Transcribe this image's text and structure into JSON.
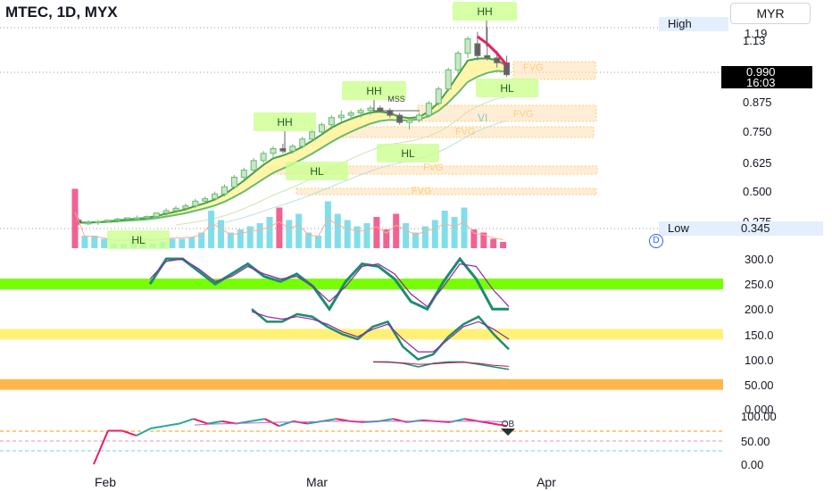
{
  "header": {
    "symbol": "MTEC",
    "interval": "1D",
    "exchange": "MYX",
    "title": "MTEC, 1D, MYX"
  },
  "currency_button": "MYR",
  "price_labels": {
    "high_label": "High",
    "high_value": "1.19",
    "low_label": "Low",
    "low_value": "0.345",
    "last_price": "0.990",
    "countdown": "16:03"
  },
  "dividend_marker": "D",
  "colors": {
    "up": "#26a69a",
    "down": "#ef5350",
    "accent_red": "#e91e63",
    "bg": "#ffffff"
  },
  "chart_data": [
    {
      "type": "candlestick",
      "x_axis": {
        "labels": [
          "Feb",
          "Mar",
          "Apr"
        ]
      },
      "y_axis": {
        "ticks": [
          "1.13",
          "0.875",
          "0.750",
          "0.625",
          "0.500",
          "0.375"
        ],
        "range": [
          0.33,
          1.22
        ]
      },
      "ohlc": [
        [
          0.38,
          0.39,
          0.36,
          0.37
        ],
        [
          0.37,
          0.38,
          0.36,
          0.37
        ],
        [
          0.37,
          0.38,
          0.36,
          0.375
        ],
        [
          0.375,
          0.38,
          0.37,
          0.38
        ],
        [
          0.38,
          0.39,
          0.37,
          0.385
        ],
        [
          0.385,
          0.39,
          0.38,
          0.39
        ],
        [
          0.39,
          0.4,
          0.38,
          0.39
        ],
        [
          0.39,
          0.4,
          0.385,
          0.395
        ],
        [
          0.395,
          0.41,
          0.39,
          0.41
        ],
        [
          0.41,
          0.43,
          0.4,
          0.42
        ],
        [
          0.42,
          0.44,
          0.41,
          0.43
        ],
        [
          0.43,
          0.45,
          0.42,
          0.44
        ],
        [
          0.44,
          0.47,
          0.43,
          0.46
        ],
        [
          0.46,
          0.48,
          0.45,
          0.47
        ],
        [
          0.47,
          0.5,
          0.46,
          0.49
        ],
        [
          0.49,
          0.53,
          0.48,
          0.52
        ],
        [
          0.52,
          0.57,
          0.51,
          0.56
        ],
        [
          0.56,
          0.6,
          0.55,
          0.59
        ],
        [
          0.59,
          0.64,
          0.58,
          0.63
        ],
        [
          0.63,
          0.67,
          0.62,
          0.66
        ],
        [
          0.66,
          0.69,
          0.64,
          0.68
        ],
        [
          0.68,
          0.7,
          0.66,
          0.67
        ],
        [
          0.67,
          0.7,
          0.66,
          0.69
        ],
        [
          0.69,
          0.73,
          0.68,
          0.72
        ],
        [
          0.72,
          0.76,
          0.71,
          0.75
        ],
        [
          0.75,
          0.79,
          0.74,
          0.78
        ],
        [
          0.78,
          0.82,
          0.76,
          0.81
        ],
        [
          0.81,
          0.84,
          0.79,
          0.82
        ],
        [
          0.82,
          0.84,
          0.8,
          0.83
        ],
        [
          0.83,
          0.85,
          0.81,
          0.84
        ],
        [
          0.84,
          0.86,
          0.82,
          0.85
        ],
        [
          0.85,
          0.86,
          0.83,
          0.84
        ],
        [
          0.84,
          0.85,
          0.81,
          0.82
        ],
        [
          0.82,
          0.83,
          0.78,
          0.79
        ],
        [
          0.79,
          0.81,
          0.76,
          0.8
        ],
        [
          0.8,
          0.83,
          0.79,
          0.82
        ],
        [
          0.82,
          0.88,
          0.81,
          0.87
        ],
        [
          0.87,
          0.94,
          0.86,
          0.93
        ],
        [
          0.93,
          1.02,
          0.92,
          1.01
        ],
        [
          1.01,
          1.09,
          1.0,
          1.08
        ],
        [
          1.08,
          1.15,
          1.06,
          1.14
        ],
        [
          1.12,
          1.17,
          1.05,
          1.07
        ],
        [
          1.07,
          1.19,
          1.05,
          1.06
        ],
        [
          1.06,
          1.09,
          1.02,
          1.04
        ],
        [
          1.04,
          1.07,
          0.98,
          0.99
        ]
      ],
      "annotations": [
        "HH",
        "HH",
        "HH",
        "HL",
        "HL",
        "HL",
        "HL",
        "MSS",
        "FVG",
        "FVG",
        "FVG",
        "FVG",
        "VI"
      ]
    },
    {
      "type": "line",
      "y_axis": {
        "ticks": [
          "300.0",
          "250.0",
          "200.0",
          "150.0",
          "100.0",
          "50.00",
          "0.000"
        ],
        "range": [
          0,
          300
        ]
      },
      "bands": [
        250,
        150,
        50
      ],
      "series": [
        {
          "values": [
            250,
            300,
            300,
            275,
            250,
            270,
            290,
            265,
            255,
            270,
            245,
            200,
            255,
            290,
            285,
            260,
            215,
            200,
            255,
            300,
            260,
            200,
            200
          ]
        },
        {
          "values": [
            260,
            295,
            300,
            280,
            255,
            265,
            285,
            270,
            260,
            265,
            245,
            215,
            245,
            285,
            290,
            270,
            230,
            205,
            245,
            290,
            285,
            240,
            205
          ]
        },
        {
          "values": [
            200,
            175,
            175,
            190,
            185,
            165,
            150,
            140,
            165,
            175,
            125,
            100,
            110,
            145,
            170,
            185,
            150,
            120
          ]
        },
        {
          "values": [
            195,
            185,
            180,
            185,
            180,
            170,
            155,
            145,
            160,
            170,
            140,
            115,
            115,
            140,
            165,
            175,
            160,
            140
          ]
        },
        {
          "values": [
            95,
            95,
            92,
            85,
            92,
            95,
            95,
            90,
            85,
            80
          ]
        },
        {
          "values": [
            95,
            94,
            93,
            90,
            91,
            93,
            94,
            92,
            88,
            86
          ]
        }
      ]
    },
    {
      "type": "line",
      "y_axis": {
        "ticks": [
          "100.00",
          "50.00",
          "0.00"
        ],
        "range": [
          0,
          100
        ]
      },
      "annotations": [
        "OB"
      ],
      "series": [
        {
          "values": [
            0,
            70,
            70,
            60,
            75,
            80,
            85,
            95,
            85,
            90,
            85,
            90,
            95,
            80,
            90,
            85,
            90,
            95,
            90,
            88,
            90,
            95,
            88,
            92,
            90,
            88,
            95,
            90,
            85,
            80
          ]
        },
        {
          "values": [
            82,
            84,
            85,
            86,
            87,
            88,
            88,
            89,
            90,
            90,
            90,
            90,
            90,
            90,
            90,
            90,
            90,
            90,
            88
          ]
        }
      ]
    }
  ]
}
